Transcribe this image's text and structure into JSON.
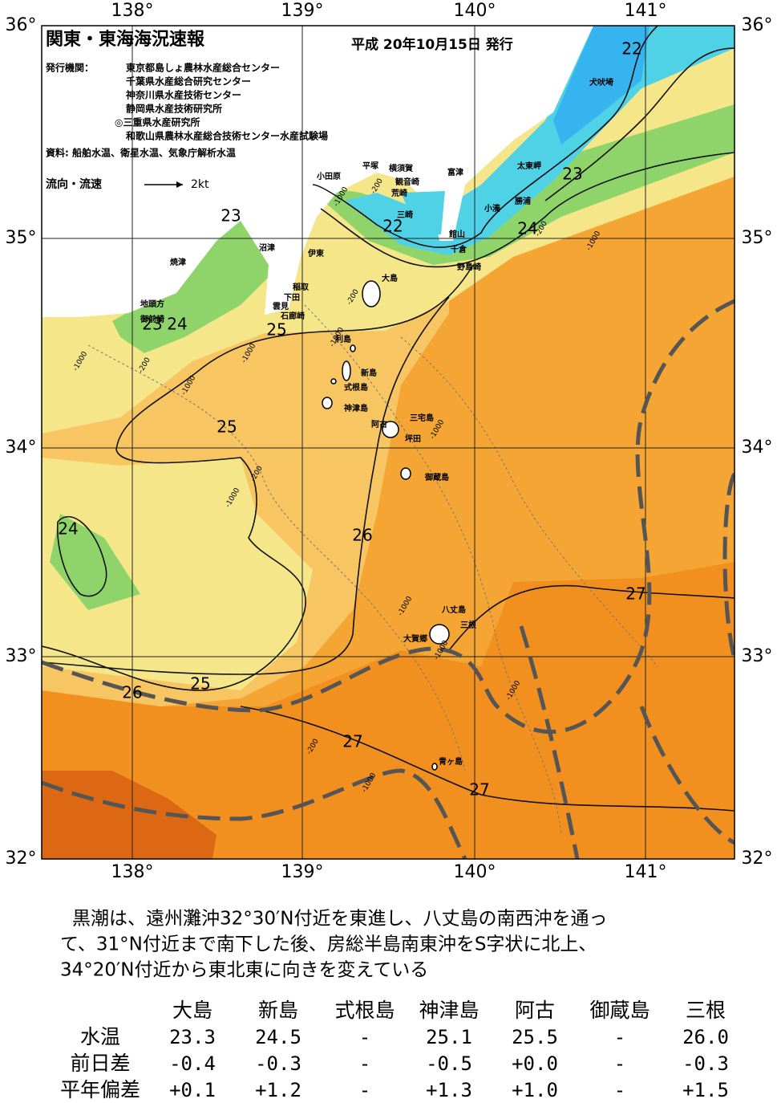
{
  "header": {
    "title": "関東・東海海況速報",
    "date": "平成 20年10月15日 発行",
    "issuer_label": "発行機関：",
    "issuers": [
      "東京都島しょ農林水産総合センター",
      "千葉県水産総合研究センター",
      "神奈川県水産技術センター",
      "静岡県水産技術研究所",
      "◎三重県水産研究所",
      "和歌山県農林水産総合技術センター水産試験場"
    ],
    "source": "資料: 船舶水温、衛星水温、気象庁解析水温",
    "flow_label": "流向・流速",
    "flow_scale": "2kt"
  },
  "axes": {
    "lon_labels": [
      "138°",
      "139°",
      "140°",
      "141°"
    ],
    "lat_labels": [
      "36°",
      "35°",
      "34°",
      "33°",
      "32°"
    ]
  },
  "places": [
    "犬吠埼",
    "太東岬",
    "勝浦",
    "小湊",
    "富津",
    "館山",
    "千倉",
    "野島崎",
    "平塚",
    "横須賀",
    "観音崎",
    "荒崎",
    "三崎",
    "小田原",
    "沼津",
    "伊東",
    "稲取",
    "下田",
    "雲見",
    "石廊崎",
    "焼津",
    "地頭方",
    "御前崎",
    "大島",
    "利島",
    "新島",
    "式根島",
    "神津島",
    "三宅島",
    "阿古",
    "坪田",
    "御蔵島",
    "八丈島",
    "三根",
    "大賀郷",
    "青ヶ島"
  ],
  "contour_labels": [
    "22",
    "23",
    "22",
    "24",
    "23",
    "23",
    "24",
    "25",
    "25",
    "24",
    "26",
    "27",
    "25",
    "26",
    "27",
    "27"
  ],
  "depth_labels": [
    "-1000",
    "-200",
    "-1000",
    "-200",
    "-1000",
    "-200",
    "-1000",
    "-1000",
    "-200",
    "-1000",
    "-1000",
    "-1000",
    "-1000",
    "-200",
    "-1000",
    "-1000",
    "-1000",
    "-200"
  ],
  "description": [
    "黒潮は、遠州灘沖32°30′N付近を東進し、八丈島の南西沖を通っ",
    "て、31°N付近まで南下した後、房総半島南東沖をS字状に北上、",
    "34°20′N付近から東北東に向きを変えている"
  ],
  "table": {
    "columns": [
      "大島",
      "新島",
      "式根島",
      "神津島",
      "阿古",
      "御蔵島",
      "三根"
    ],
    "rows": [
      {
        "label": "水温",
        "values": [
          "23.3",
          "24.5",
          "-",
          "25.1",
          "25.5",
          "-",
          "26.0"
        ]
      },
      {
        "label": "前日差",
        "values": [
          "-0.4",
          "-0.3",
          "-",
          "-0.5",
          "+0.0",
          "-",
          "-0.3"
        ]
      },
      {
        "label": "平年偏差",
        "values": [
          "+0.1",
          "+1.2",
          "-",
          "+1.3",
          "+1.0",
          "-",
          "+1.5"
        ]
      }
    ]
  }
}
